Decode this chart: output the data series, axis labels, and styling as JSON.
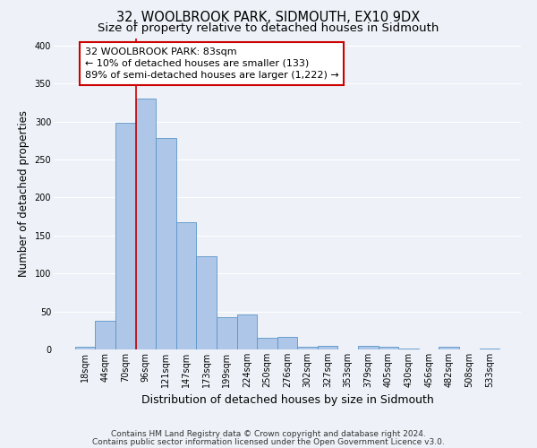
{
  "title": "32, WOOLBROOK PARK, SIDMOUTH, EX10 9DX",
  "subtitle": "Size of property relative to detached houses in Sidmouth",
  "xlabel": "Distribution of detached houses by size in Sidmouth",
  "ylabel": "Number of detached properties",
  "bar_labels": [
    "18sqm",
    "44sqm",
    "70sqm",
    "96sqm",
    "121sqm",
    "147sqm",
    "173sqm",
    "199sqm",
    "224sqm",
    "250sqm",
    "276sqm",
    "302sqm",
    "327sqm",
    "353sqm",
    "379sqm",
    "405sqm",
    "430sqm",
    "456sqm",
    "482sqm",
    "508sqm",
    "533sqm"
  ],
  "bar_heights": [
    3,
    38,
    298,
    330,
    278,
    168,
    123,
    43,
    46,
    15,
    17,
    4,
    5,
    0,
    5,
    3,
    1,
    0,
    3,
    0,
    1
  ],
  "bar_color": "#aec6e8",
  "bar_edge_color": "#5a96c8",
  "vline_color": "#cc0000",
  "annotation_text": "32 WOOLBROOK PARK: 83sqm\n← 10% of detached houses are smaller (133)\n89% of semi-detached houses are larger (1,222) →",
  "annotation_box_color": "white",
  "annotation_box_edge_color": "#cc0000",
  "ylim": [
    0,
    410
  ],
  "yticks": [
    0,
    50,
    100,
    150,
    200,
    250,
    300,
    350,
    400
  ],
  "footer_line1": "Contains HM Land Registry data © Crown copyright and database right 2024.",
  "footer_line2": "Contains public sector information licensed under the Open Government Licence v3.0.",
  "background_color": "#eef2f8",
  "grid_color": "#ffffff",
  "title_fontsize": 10.5,
  "subtitle_fontsize": 9.5,
  "xlabel_fontsize": 9,
  "ylabel_fontsize": 8.5,
  "tick_fontsize": 7,
  "annotation_fontsize": 8,
  "footer_fontsize": 6.5,
  "vline_x": 2.5
}
